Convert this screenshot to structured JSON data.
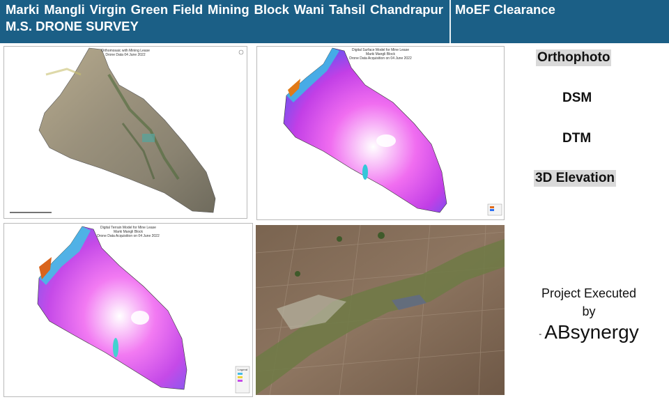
{
  "header": {
    "title": "Marki Mangli Virgin Green Field Mining Block Wani Tahsil Chandrapur M.S. DRONE SURVEY",
    "side_title": "MoEF Clearance"
  },
  "panels": {
    "orthomosaic": {
      "title_lines": [
        "Orthomosaic with Mining Lease",
        "Drone Data 04 June 2022"
      ]
    },
    "dsm": {
      "title_lines": [
        "Digital Surface Model for Mine Lease",
        "Marki Mangli Block",
        "Drone Data Acquisition on 04 June 2022"
      ]
    },
    "dtm": {
      "title_lines": [
        "Digital Terrain Model for Mine Lease",
        "Marki Mangli Block",
        "Drone Data Acquisition on 04 June 2022"
      ],
      "legend_title": "Legend"
    },
    "view3d": {}
  },
  "labels": {
    "orthophoto": "Orthophoto",
    "dsm": "DSM",
    "dtm": "DTM",
    "elevation": "3D Elevation"
  },
  "credit": {
    "line1": "Project Executed",
    "line2": "by",
    "dash": "-",
    "company": "ABsynergy"
  }
}
